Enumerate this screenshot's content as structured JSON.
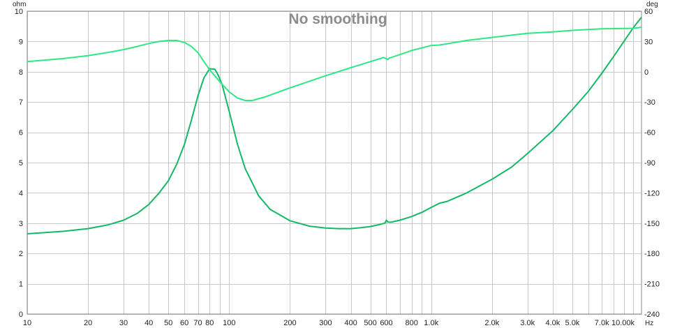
{
  "chart_data": {
    "type": "line",
    "title": "No smoothing",
    "grid": true,
    "x_scale": "log",
    "xlim": [
      10,
      11000
    ],
    "x_unit": "Hz",
    "x_ticks": [
      {
        "value": 10,
        "label": "10"
      },
      {
        "value": 20,
        "label": "20"
      },
      {
        "value": 30,
        "label": "30"
      },
      {
        "value": 40,
        "label": "40"
      },
      {
        "value": 50,
        "label": "50"
      },
      {
        "value": 60,
        "label": "60"
      },
      {
        "value": 70,
        "label": "70"
      },
      {
        "value": 80,
        "label": "80"
      },
      {
        "value": 100,
        "label": "100"
      },
      {
        "value": 200,
        "label": "200"
      },
      {
        "value": 300,
        "label": "300"
      },
      {
        "value": 400,
        "label": "400"
      },
      {
        "value": 500,
        "label": "500"
      },
      {
        "value": 600,
        "label": "600"
      },
      {
        "value": 800,
        "label": "800"
      },
      {
        "value": 1000,
        "label": "1.0k"
      },
      {
        "value": 2000,
        "label": "2.0k"
      },
      {
        "value": 3000,
        "label": "3.0k"
      },
      {
        "value": 4000,
        "label": "4.0k"
      },
      {
        "value": 5000,
        "label": "5.0k"
      },
      {
        "value": 7000,
        "label": "7.0k"
      },
      {
        "value": 10000,
        "label": "10.00k"
      }
    ],
    "y_left": {
      "unit": "ohm",
      "lim": [
        0,
        10
      ],
      "ticks": [
        0,
        1,
        2,
        3,
        4,
        5,
        6,
        7,
        8,
        9,
        10
      ]
    },
    "y_right": {
      "unit": "deg",
      "lim": [
        -240,
        60
      ],
      "ticks": [
        -240,
        -210,
        -180,
        -150,
        -120,
        -90,
        -60,
        -30,
        0,
        30,
        60
      ]
    },
    "series": [
      {
        "axis": "left",
        "color": "#14b866",
        "x": [
          10,
          15,
          20,
          25,
          30,
          35,
          40,
          45,
          50,
          55,
          60,
          65,
          70,
          75,
          80,
          85,
          88,
          92,
          95,
          100,
          110,
          120,
          140,
          160,
          200,
          250,
          300,
          350,
          400,
          450,
          500,
          550,
          590,
          600,
          610,
          630,
          700,
          800,
          900,
          1000,
          1100,
          1200,
          1500,
          2000,
          2500,
          3000,
          4000,
          5000,
          6000,
          7000,
          8000,
          9000,
          10000,
          11000
        ],
        "values": [
          2.65,
          2.73,
          2.82,
          2.94,
          3.1,
          3.32,
          3.62,
          4.0,
          4.4,
          4.95,
          5.6,
          6.4,
          7.2,
          7.8,
          8.1,
          8.08,
          7.9,
          7.6,
          7.25,
          6.7,
          5.6,
          4.8,
          3.9,
          3.45,
          3.08,
          2.9,
          2.84,
          2.82,
          2.82,
          2.85,
          2.89,
          2.95,
          3.0,
          3.1,
          3.04,
          3.03,
          3.1,
          3.22,
          3.36,
          3.52,
          3.66,
          3.72,
          4.0,
          4.45,
          4.85,
          5.3,
          6.05,
          6.75,
          7.35,
          7.95,
          8.5,
          9.0,
          9.45,
          9.8
        ]
      },
      {
        "axis": "right",
        "color": "#2ee886",
        "x": [
          10,
          15,
          20,
          25,
          30,
          35,
          40,
          45,
          50,
          55,
          60,
          65,
          70,
          75,
          80,
          90,
          100,
          110,
          120,
          130,
          150,
          200,
          300,
          400,
          500,
          580,
          600,
          610,
          620,
          700,
          800,
          1000,
          1100,
          1500,
          2000,
          3000,
          4000,
          5000,
          7000,
          10000,
          11000
        ],
        "values": [
          10,
          13,
          16,
          19,
          22,
          25,
          28,
          30,
          31,
          31,
          29,
          25,
          19,
          10,
          2,
          -10,
          -20,
          -26,
          -28.5,
          -28.5,
          -25,
          -16,
          -4,
          4,
          10,
          14,
          13,
          12,
          13.5,
          17,
          21,
          26,
          26.5,
          31,
          34,
          38,
          39.5,
          41,
          42.5,
          43,
          44
        ]
      }
    ]
  }
}
